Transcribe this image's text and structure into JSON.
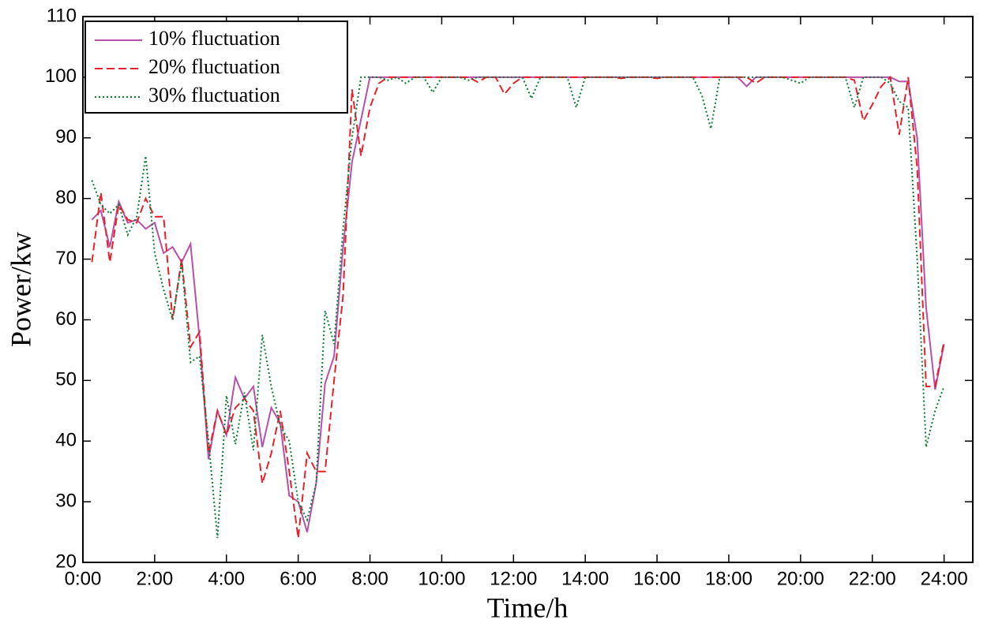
{
  "chart_data": {
    "type": "line",
    "x_label": "Time/h",
    "y_label": "Power/kw",
    "x": [
      0.25,
      0.5,
      0.75,
      1,
      1.25,
      1.5,
      1.75,
      2,
      2.25,
      2.5,
      2.75,
      3,
      3.25,
      3.5,
      3.75,
      4,
      4.25,
      4.5,
      4.75,
      5,
      5.25,
      5.5,
      5.75,
      6,
      6.25,
      6.5,
      6.75,
      7,
      7.25,
      7.5,
      7.75,
      8,
      8.25,
      8.5,
      8.75,
      9,
      9.25,
      9.5,
      9.75,
      10,
      10.25,
      10.5,
      10.75,
      11,
      11.25,
      11.5,
      11.75,
      12,
      12.25,
      12.5,
      12.75,
      13,
      13.25,
      13.5,
      13.75,
      14,
      14.25,
      14.5,
      14.75,
      15,
      15.25,
      15.5,
      15.75,
      16,
      16.25,
      16.5,
      16.75,
      17,
      17.25,
      17.5,
      17.75,
      18,
      18.25,
      18.5,
      18.75,
      19,
      19.25,
      19.5,
      19.75,
      20,
      20.25,
      20.5,
      20.75,
      21,
      21.25,
      21.5,
      21.75,
      22,
      22.25,
      22.5,
      22.75,
      23,
      23.25,
      23.5,
      23.75,
      24
    ],
    "series": [
      {
        "name": "10% fluctuation",
        "color": "#b84fa8",
        "dash": "solid",
        "values": [
          76.5,
          78,
          72,
          79.5,
          76,
          76.5,
          75,
          76,
          71,
          72,
          69.5,
          72.5,
          57,
          37,
          45,
          41,
          50.5,
          47,
          49,
          39,
          45.5,
          43,
          31,
          30,
          25,
          33,
          49.5,
          54,
          72,
          86,
          93,
          100,
          100,
          100,
          100,
          100,
          100,
          100,
          100,
          100,
          100,
          100,
          100,
          100,
          100,
          100,
          100,
          100,
          100,
          100,
          100,
          100,
          100,
          100,
          100,
          100,
          100,
          100,
          100,
          100,
          100,
          100,
          100,
          100,
          100,
          100,
          100,
          100,
          100,
          100,
          100,
          100,
          100,
          98.5,
          100,
          100,
          100,
          100,
          100,
          100,
          100,
          100,
          100,
          100,
          100,
          100,
          100,
          100,
          100,
          100,
          99.3,
          99.3,
          90,
          62,
          48.5,
          56
        ]
      },
      {
        "name": "20% fluctuation",
        "color": "#e8202a",
        "dash": "dashed",
        "values": [
          69.5,
          81,
          69.5,
          79,
          76.5,
          76,
          80,
          77,
          77,
          60,
          70,
          55.5,
          58,
          38,
          45,
          41,
          45.5,
          47,
          45,
          33,
          38,
          45,
          35,
          24,
          38,
          35,
          35,
          50,
          64,
          98,
          87,
          95,
          99,
          100,
          100,
          100,
          100,
          100,
          100,
          100,
          100,
          100,
          100,
          99.2,
          100,
          100,
          97.2,
          99,
          100,
          100,
          100,
          100,
          100,
          100,
          100,
          100,
          100,
          100,
          100,
          99.8,
          100,
          100,
          100,
          99.8,
          100,
          100,
          100,
          100,
          100,
          100,
          100,
          100,
          100,
          100,
          99,
          100,
          100,
          100,
          100,
          100,
          100,
          100,
          100,
          100,
          100,
          99.5,
          92.8,
          95.5,
          98.5,
          100,
          90.5,
          100,
          85,
          49,
          49,
          56.5
        ]
      },
      {
        "name": "30% fluctuation",
        "color": "#0a7a30",
        "dash": "dotted",
        "values": [
          83,
          79,
          77.5,
          79,
          74,
          77,
          87,
          71,
          65,
          60,
          69.5,
          53,
          54,
          40,
          24,
          47.5,
          39.5,
          48,
          38.5,
          57.5,
          49,
          42.5,
          40,
          30,
          27,
          33,
          61.5,
          56,
          75,
          90,
          100,
          100,
          100,
          99.5,
          100,
          99,
          100,
          100,
          97.5,
          100,
          100,
          100,
          99.5,
          100,
          100,
          100,
          100,
          100,
          100,
          96.5,
          100,
          100,
          100,
          100,
          95,
          100,
          100,
          100,
          100,
          100,
          100,
          100,
          100,
          100,
          100,
          100,
          100,
          100,
          97,
          91.5,
          100,
          100,
          100,
          100,
          100,
          100,
          100,
          100,
          99.5,
          99,
          100,
          100,
          100,
          100,
          100,
          95,
          100,
          100,
          100,
          99,
          96,
          95,
          70,
          39,
          45,
          49
        ]
      }
    ],
    "xlim": [
      0,
      24.8
    ],
    "ylim": [
      20,
      110
    ],
    "xticks": [
      {
        "value": 0,
        "label": "0:00"
      },
      {
        "value": 2,
        "label": "2:00"
      },
      {
        "value": 4,
        "label": "4:00"
      },
      {
        "value": 6,
        "label": "6:00"
      },
      {
        "value": 8,
        "label": "8:00"
      },
      {
        "value": 10,
        "label": "10:00"
      },
      {
        "value": 12,
        "label": "12:00"
      },
      {
        "value": 14,
        "label": "14:00"
      },
      {
        "value": 16,
        "label": "16:00"
      },
      {
        "value": 18,
        "label": "18:00"
      },
      {
        "value": 20,
        "label": "20:00"
      },
      {
        "value": 22,
        "label": "22:00"
      },
      {
        "value": 24,
        "label": "24:00"
      }
    ],
    "yticks": [
      20,
      30,
      40,
      50,
      60,
      70,
      80,
      90,
      100,
      110
    ],
    "grid": false,
    "legend": "upper left"
  }
}
